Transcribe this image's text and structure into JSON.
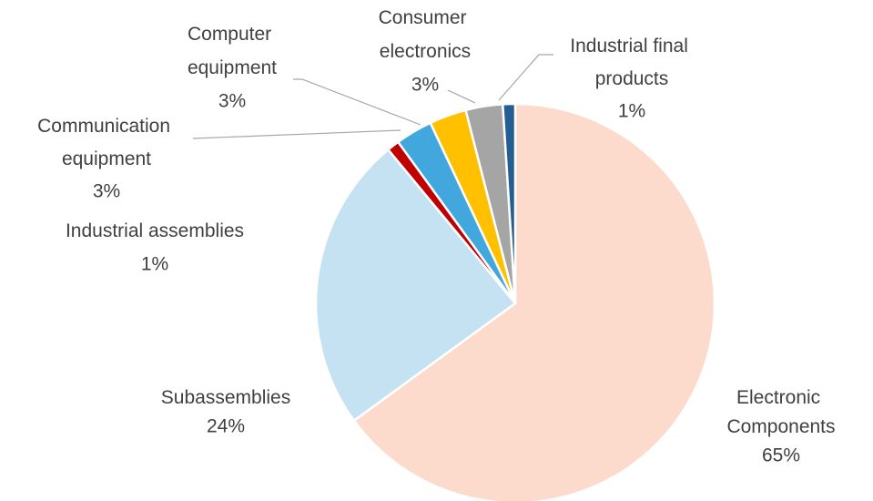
{
  "chart_data": {
    "type": "pie",
    "categories": [
      "Electronic Components",
      "Subassemblies",
      "Industrial assemblies",
      "Communication equipment",
      "Computer equipment",
      "Consumer electronics",
      "Industrial final products"
    ],
    "values": [
      65,
      24,
      1,
      3,
      3,
      3,
      1
    ],
    "value_labels": [
      "65%",
      "24%",
      "1%",
      "3%",
      "3%",
      "3%",
      "1%"
    ],
    "colors": [
      "#fcdbcc",
      "#c5e2f3",
      "#c00000",
      "#41a7dd",
      "#ffc000",
      "#a5a5a5",
      "#255e91"
    ]
  }
}
